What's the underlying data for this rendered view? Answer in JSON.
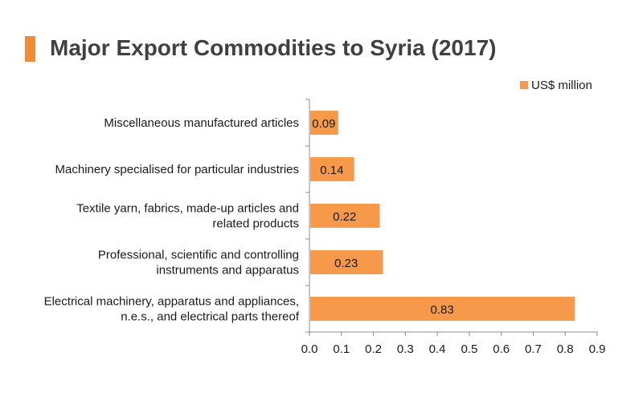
{
  "colors": {
    "accent": "#F28C38",
    "bar": "#F7994A",
    "axis": "#8c8c8c"
  },
  "chart_data": {
    "type": "bar",
    "orientation": "horizontal",
    "title": "Major Export Commodities to Syria (2017)",
    "categories": [
      [
        "Miscellaneous manufactured articles"
      ],
      [
        "Machinery specialised for particular industries"
      ],
      [
        "Textile yarn, fabrics, made-up articles and",
        "related products"
      ],
      [
        "Professional, scientific and controlling",
        "instruments and apparatus"
      ],
      [
        "Electrical machinery, apparatus and appliances,",
        "n.e.s., and electrical parts thereof"
      ]
    ],
    "series": [
      {
        "name": "US$ million",
        "values": [
          0.09,
          0.14,
          0.22,
          0.23,
          0.83
        ]
      }
    ],
    "data_labels": [
      "0.09",
      "0.14",
      "0.22",
      "0.23",
      "0.83"
    ],
    "xlim": [
      0,
      0.9
    ],
    "xticks": [
      "0.0",
      "0.1",
      "0.2",
      "0.3",
      "0.4",
      "0.5",
      "0.6",
      "0.7",
      "0.8",
      "0.9"
    ],
    "legend_position": "top-right",
    "grid": false
  }
}
